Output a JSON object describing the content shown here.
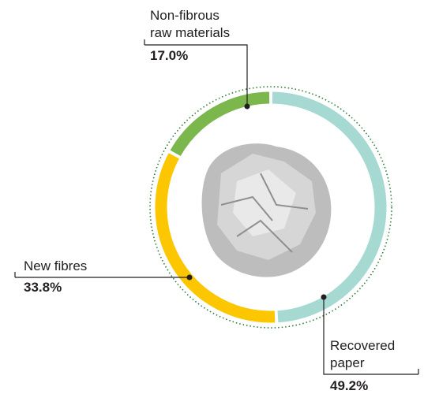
{
  "chart_data": {
    "type": "donut",
    "categories": [
      "Recovered paper",
      "New fibres",
      "Non-fibrous raw materials"
    ],
    "values": [
      49.2,
      33.8,
      17.0
    ],
    "value_labels": [
      "49.2%",
      "33.8%",
      "17.0%"
    ],
    "colors": [
      "#a7d9d3",
      "#fcc600",
      "#7cb74e"
    ]
  }
}
